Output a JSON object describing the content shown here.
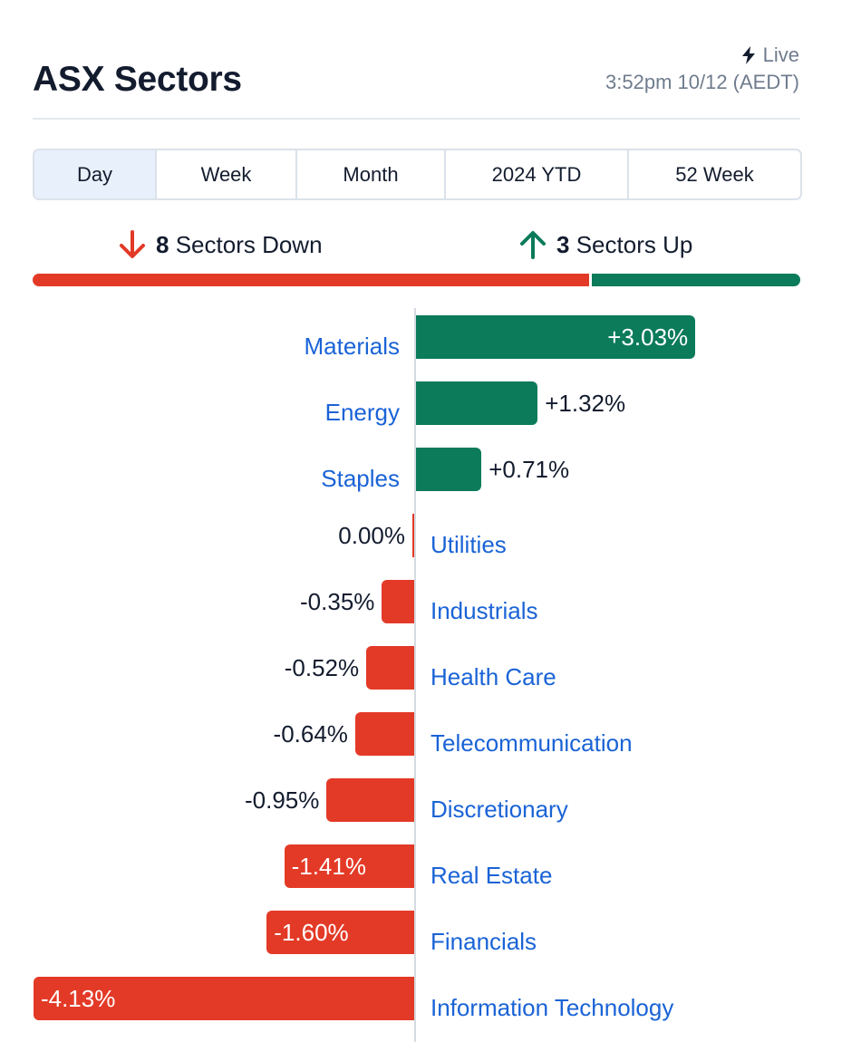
{
  "header": {
    "title": "ASX Sectors",
    "live_label": "Live",
    "timestamp": "3:52pm 10/12 (AEDT)"
  },
  "tabs": [
    {
      "label": "Day",
      "active": true
    },
    {
      "label": "Week",
      "active": false
    },
    {
      "label": "Month",
      "active": false
    },
    {
      "label": "2024 YTD",
      "active": false
    },
    {
      "label": "52 Week",
      "active": false
    }
  ],
  "summary": {
    "down_count": "8",
    "down_text": "Sectors Down",
    "up_count": "3",
    "up_text": "Sectors Up"
  },
  "colors": {
    "positive": "#0b7b5a",
    "negative": "#e33a27",
    "link": "#1a63d6"
  },
  "icons": {
    "live": "lightning-icon",
    "down": "arrow-down-icon",
    "up": "arrow-up-icon"
  },
  "chart_data": {
    "type": "bar",
    "orientation": "horizontal",
    "categories": [
      "Materials",
      "Energy",
      "Staples",
      "Utilities",
      "Industrials",
      "Health Care",
      "Telecommunication",
      "Discretionary",
      "Real Estate",
      "Financials",
      "Information Technology"
    ],
    "values": [
      3.03,
      1.32,
      0.71,
      0.0,
      -0.35,
      -0.52,
      -0.64,
      -0.95,
      -1.41,
      -1.6,
      -4.13
    ],
    "value_labels": [
      "+3.03%",
      "+1.32%",
      "+0.71%",
      "0.00%",
      "-0.35%",
      "-0.52%",
      "-0.64%",
      "-0.95%",
      "-1.41%",
      "-1.60%",
      "-4.13%"
    ],
    "title": "",
    "xlabel": "",
    "ylabel": "",
    "grid": false,
    "legend": "none"
  }
}
